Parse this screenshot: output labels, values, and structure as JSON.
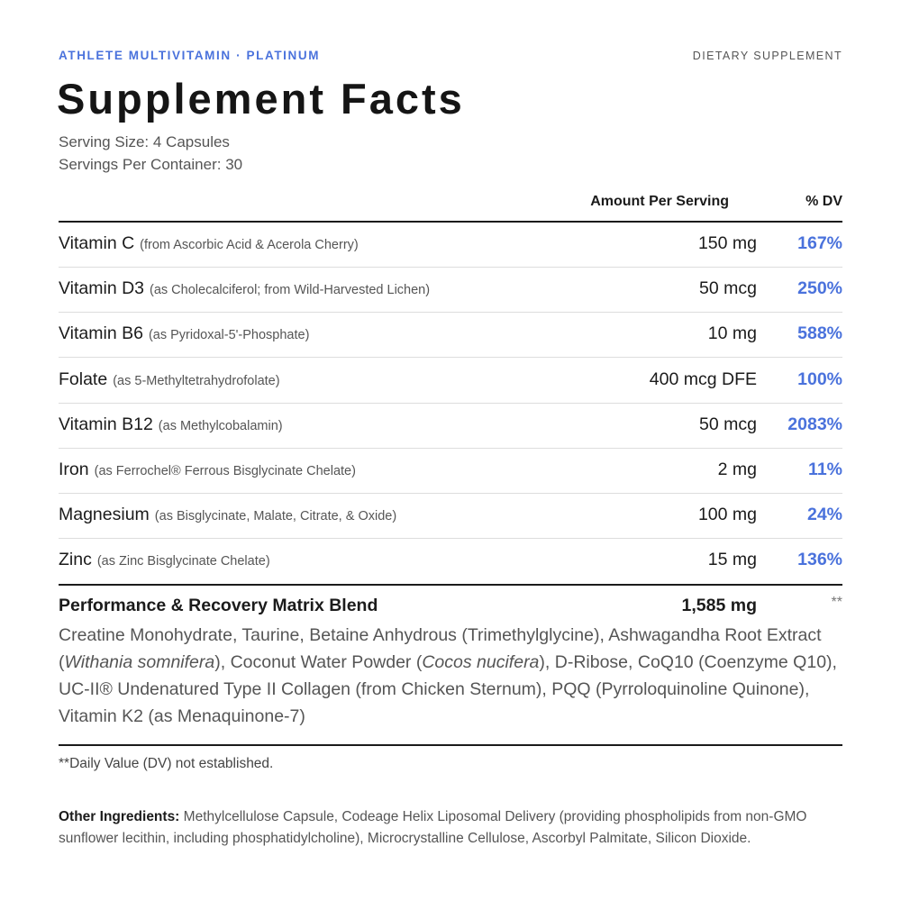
{
  "header": {
    "brand": "ATHLETE MULTIVITAMIN · PLATINUM",
    "label": "DIETARY SUPPLEMENT",
    "title": "Supplement Facts",
    "serving_size": "Serving Size: 4 Capsules",
    "servings_per_container": "Servings Per Container: 30"
  },
  "table": {
    "columns": [
      "Amount Per Serving",
      "% DV"
    ],
    "rows": [
      {
        "name": "Vitamin C",
        "source": "(from Ascorbic Acid & Acerola Cherry)",
        "amount": "150 mg",
        "dv": "167%"
      },
      {
        "name": "Vitamin D3",
        "source": "(as Cholecalciferol; from Wild-Harvested Lichen)",
        "amount": "50 mcg",
        "dv": "250%"
      },
      {
        "name": "Vitamin B6",
        "source": "(as Pyridoxal-5'-Phosphate)",
        "amount": "10 mg",
        "dv": "588%"
      },
      {
        "name": "Folate",
        "source": "(as 5-Methyltetrahydrofolate)",
        "amount": "400 mcg DFE",
        "dv": "100%"
      },
      {
        "name": "Vitamin B12",
        "source": "(as Methylcobalamin)",
        "amount": "50 mcg",
        "dv": "2083%"
      },
      {
        "name": "Iron",
        "source": "(as Ferrochel® Ferrous Bisglycinate Chelate)",
        "amount": "2 mg",
        "dv": "11%"
      },
      {
        "name": "Magnesium",
        "source": "(as Bisglycinate, Malate, Citrate, & Oxide)",
        "amount": "100 mg",
        "dv": "24%"
      },
      {
        "name": "Zinc",
        "source": "(as Zinc Bisglycinate Chelate)",
        "amount": "15 mg",
        "dv": "136%"
      }
    ]
  },
  "blend": {
    "name": "Performance & Recovery Matrix Blend",
    "amount": "1,585 mg",
    "dv": "**",
    "description": [
      {
        "text": "Creatine Monohydrate, Taurine, Betaine Anhydrous (Trimethylglycine), Ashwagandha Root Extract ("
      },
      {
        "text": "Withania somnifera",
        "italic": true
      },
      {
        "text": "), Coconut Water Powder ("
      },
      {
        "text": "Cocos nucifera",
        "italic": true
      },
      {
        "text": "), D-Ribose, CoQ10 (Coenzyme Q10), UC-II® Undenatured Type II Collagen (from Chicken Sternum), PQQ (Pyrroloquinoline Quinone), Vitamin K2 (as Menaquinone-7)"
      }
    ]
  },
  "footnote": "**Daily Value (DV) not established.",
  "other_ingredients": {
    "label": "Other Ingredients:",
    "text": "Methylcellulose Capsule, Codeage Helix Liposomal Delivery (providing phospholipids from non-GMO sunflower lecithin, including phosphatidylcholine), Microcrystalline Cellulose, Ascorbyl Palmitate, Silicon Dioxide."
  }
}
